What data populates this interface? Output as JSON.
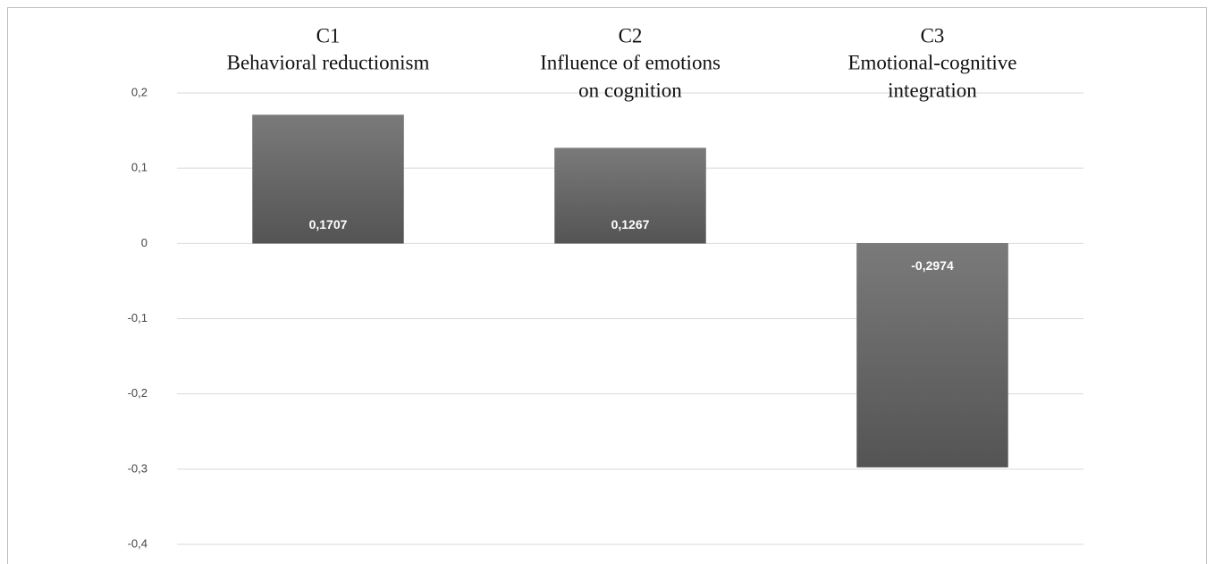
{
  "chart_data": {
    "type": "bar",
    "categories": [
      "C1",
      "C2",
      "C3"
    ],
    "category_descriptions": [
      [
        "Behavioral reductionism"
      ],
      [
        "Influence  of emotions",
        "on cognition"
      ],
      [
        "Emotional-cognitive",
        "integration"
      ]
    ],
    "values": [
      0.1707,
      0.1267,
      -0.2974
    ],
    "value_labels": [
      "0,1707",
      "0,1267",
      "-0,2974"
    ],
    "color": "#666666",
    "ylim": [
      -0.4,
      0.2
    ],
    "yticks": [
      {
        "value": 0.2,
        "label": "0,2"
      },
      {
        "value": 0.1,
        "label": "0,1"
      },
      0,
      {
        "value": -0.1,
        "label": "-0,1"
      },
      {
        "value": -0.2,
        "label": "-0,2"
      },
      {
        "value": -0.3,
        "label": "-0,3"
      },
      {
        "value": -0.4,
        "label": "-0,4"
      }
    ],
    "grid": true
  }
}
